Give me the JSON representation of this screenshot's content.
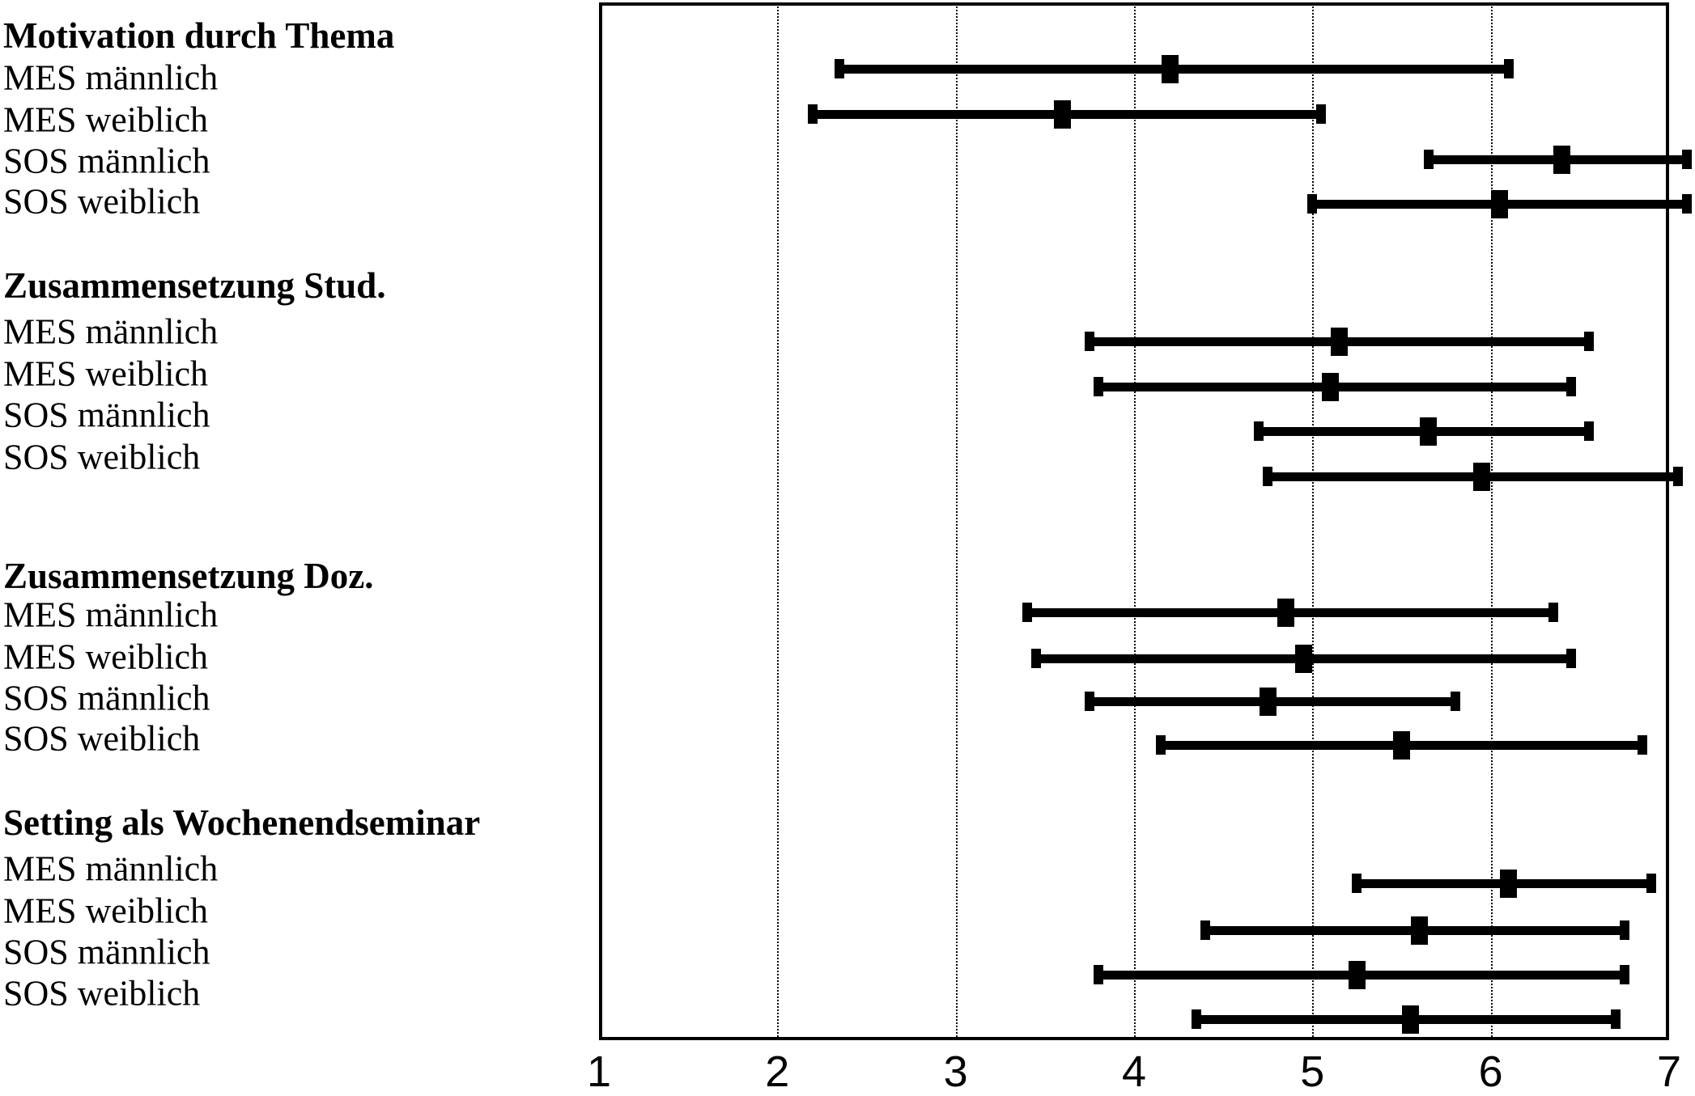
{
  "chart_data": {
    "type": "scatter",
    "variant": "horizontal-error-bars-with-mean-markers",
    "title": "",
    "xlabel": "",
    "ylabel": "",
    "xlim": [
      1,
      7
    ],
    "x_tick_labels": [
      "1",
      "2",
      "3",
      "4",
      "5",
      "6",
      "7"
    ],
    "gridlines_at": [
      2,
      3,
      4,
      5,
      6
    ],
    "grid_style": "dotted-vertical",
    "legend": "none",
    "colors": {
      "bars": "#000000",
      "grid": "#000000",
      "frame": "#000000",
      "background": "#ffffff"
    },
    "groups": [
      {
        "heading": "Motivation durch Thema",
        "rows": [
          {
            "label": "MES männlich",
            "lo": 2.35,
            "mean": 4.2,
            "hi": 6.1
          },
          {
            "label": "MES weiblich",
            "lo": 2.2,
            "mean": 3.6,
            "hi": 5.05
          },
          {
            "label": "SOS männlich",
            "lo": 5.65,
            "mean": 6.4,
            "hi": 7.1
          },
          {
            "label": "SOS weiblich",
            "lo": 5.0,
            "mean": 6.05,
            "hi": 7.1
          }
        ]
      },
      {
        "heading": "Zusammensetzung Stud.",
        "rows": [
          {
            "label": "MES männlich",
            "lo": 3.75,
            "mean": 5.15,
            "hi": 6.55
          },
          {
            "label": "MES weiblich",
            "lo": 3.8,
            "mean": 5.1,
            "hi": 6.45
          },
          {
            "label": "SOS männlich",
            "lo": 4.7,
            "mean": 5.65,
            "hi": 6.55
          },
          {
            "label": "SOS weiblich",
            "lo": 4.75,
            "mean": 5.95,
            "hi": 7.05
          }
        ]
      },
      {
        "heading": "Zusammensetzung Doz.",
        "rows": [
          {
            "label": "MES männlich",
            "lo": 3.4,
            "mean": 4.85,
            "hi": 6.35
          },
          {
            "label": "MES weiblich",
            "lo": 3.45,
            "mean": 4.95,
            "hi": 6.45
          },
          {
            "label": "SOS männlich",
            "lo": 3.75,
            "mean": 4.75,
            "hi": 5.8
          },
          {
            "label": "SOS weiblich",
            "lo": 4.15,
            "mean": 5.5,
            "hi": 6.85
          }
        ]
      },
      {
        "heading": "Setting als Wochenendseminar",
        "rows": [
          {
            "label": "MES männlich",
            "lo": 5.25,
            "mean": 6.1,
            "hi": 6.9
          },
          {
            "label": "MES weiblich",
            "lo": 4.4,
            "mean": 5.6,
            "hi": 6.75
          },
          {
            "label": "SOS männlich",
            "lo": 3.8,
            "mean": 5.25,
            "hi": 6.75
          },
          {
            "label": "SOS weiblich",
            "lo": 4.35,
            "mean": 5.55,
            "hi": 6.7
          }
        ]
      }
    ]
  }
}
